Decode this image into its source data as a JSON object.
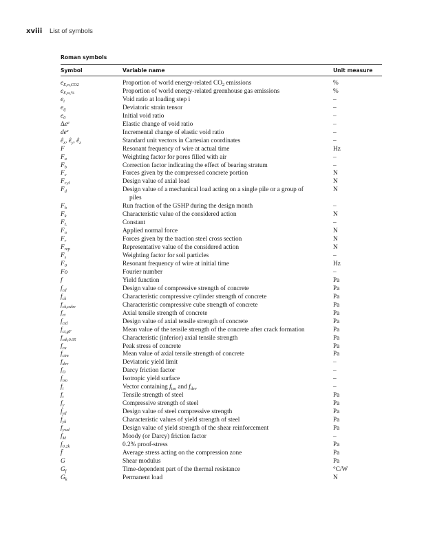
{
  "page_header": {
    "page_number": "xviii",
    "title": "List of symbols"
  },
  "section_title": "Roman symbols",
  "columns": {
    "symbol": "Symbol",
    "name": "Variable name",
    "unit": "Unit measure"
  },
  "rows": [
    {
      "sym": [
        {
          "t": "e"
        },
        {
          "sub": "E,w,CO2"
        }
      ],
      "name": [
        "Proportion of world energy-related CO",
        {
          "sub": "2"
        },
        " emissions"
      ],
      "unit": "%"
    },
    {
      "sym": [
        {
          "t": "e"
        },
        {
          "sub": "E,w,%"
        }
      ],
      "name": "Proportion of world energy-related greenhouse gas emissions",
      "unit": "%"
    },
    {
      "sym": [
        {
          "t": "e"
        },
        {
          "sub": "i"
        }
      ],
      "name": "Void ratio at loading step i",
      "unit": "–"
    },
    {
      "sym": [
        {
          "t": "e"
        },
        {
          "sub": "ij"
        }
      ],
      "name": "Deviatoric strain tensor",
      "unit": "–"
    },
    {
      "sym": [
        {
          "t": "e"
        },
        {
          "sub": "0"
        }
      ],
      "name": "Initial void ratio",
      "unit": "–"
    },
    {
      "sym": [
        {
          "up": "Δ"
        },
        {
          "t": "e"
        },
        {
          "sup": "e"
        }
      ],
      "name": "Elastic change of void ratio",
      "unit": "–"
    },
    {
      "sym": [
        {
          "t": "de"
        },
        {
          "sup": "e"
        }
      ],
      "name": "Incremental change of elastic void ratio",
      "unit": "–"
    },
    {
      "sym": [
        {
          "t": "ê"
        },
        {
          "sub": "x"
        },
        {
          "t": ", ê"
        },
        {
          "sub": "y"
        },
        {
          "t": ", ê"
        },
        {
          "sub": "z"
        }
      ],
      "name": "Standard unit vectors in Cartesian coordinates",
      "unit": "–"
    },
    {
      "sym": [
        {
          "t": "F"
        }
      ],
      "name": "Resonant frequency of wire at actual time",
      "unit": "Hz"
    },
    {
      "sym": [
        {
          "t": "F"
        },
        {
          "sub": "a"
        }
      ],
      "name": "Weighting factor for pores filled with air",
      "unit": "–"
    },
    {
      "sym": [
        {
          "t": "F"
        },
        {
          "sub": "b"
        }
      ],
      "name": "Correction factor indicating the effect of bearing stratum",
      "unit": "–"
    },
    {
      "sym": [
        {
          "t": "F"
        },
        {
          "sub": "c"
        }
      ],
      "name": "Forces given by the compressed concrete portion",
      "unit": "N"
    },
    {
      "sym": [
        {
          "t": "F"
        },
        {
          "sub": "c,d"
        }
      ],
      "name": "Design value of axial load",
      "unit": "N"
    },
    {
      "sym": [
        {
          "t": "F"
        },
        {
          "sub": "d"
        }
      ],
      "name": "Design value of a mechanical load acting on a single pile or a group of",
      "name_cont": "piles",
      "unit": "N"
    },
    {
      "sym": [
        {
          "t": "F"
        },
        {
          "sub": "h"
        }
      ],
      "name": "Run fraction of the GSHP during the design month",
      "unit": "–"
    },
    {
      "sym": [
        {
          "t": "F"
        },
        {
          "sub": "k"
        }
      ],
      "name": "Characteristic value of the considered action",
      "unit": "N"
    },
    {
      "sym": [
        {
          "t": "F"
        },
        {
          "sub": "L"
        }
      ],
      "name": "Constant",
      "unit": "–"
    },
    {
      "sym": [
        {
          "t": "F"
        },
        {
          "sub": "n"
        }
      ],
      "name": "Applied normal force",
      "unit": "N"
    },
    {
      "sym": [
        {
          "t": "F"
        },
        {
          "sub": "r"
        }
      ],
      "name": "Forces given by the traction steel cross section",
      "unit": "N"
    },
    {
      "sym": [
        {
          "t": "F"
        },
        {
          "sub": "rep"
        }
      ],
      "name": "Representative value of the considered action",
      "unit": "N"
    },
    {
      "sym": [
        {
          "t": "F"
        },
        {
          "sub": "s"
        }
      ],
      "name": "Weighting factor for soil particles",
      "unit": "–"
    },
    {
      "sym": [
        {
          "t": "F"
        },
        {
          "sub": "0"
        }
      ],
      "name": "Resonant frequency of wire at initial time",
      "unit": "Hz"
    },
    {
      "sym": [
        {
          "t": "Fo"
        }
      ],
      "name": "Fourier number",
      "unit": "–"
    },
    {
      "sym": [
        {
          "t": "f"
        }
      ],
      "name": "Yield function",
      "unit": "Pa"
    },
    {
      "sym": [
        {
          "t": "f"
        },
        {
          "sub": "cd"
        }
      ],
      "name": "Design value of compressive strength of concrete",
      "unit": "Pa"
    },
    {
      "sym": [
        {
          "t": "f"
        },
        {
          "sub": "ck"
        }
      ],
      "name": "Characteristic compressive cylinder strength of concrete",
      "unit": "Pa"
    },
    {
      "sym": [
        {
          "t": "f"
        },
        {
          "sub": "ck,cube"
        }
      ],
      "name": "Characteristic compressive cube strength of concrete",
      "unit": "Pa"
    },
    {
      "sym": [
        {
          "t": "f"
        },
        {
          "sub": "ct"
        }
      ],
      "name": "Axial tensile strength of concrete",
      "unit": "Pa"
    },
    {
      "sym": [
        {
          "t": "f"
        },
        {
          "sub": "ctd"
        }
      ],
      "name": "Design value of axial tensile strength of concrete",
      "unit": "Pa"
    },
    {
      "sym": [
        {
          "t": "f"
        },
        {
          "sub": "ct,gF"
        }
      ],
      "name": "Mean value of the tensile strength of the concrete after crack formation",
      "unit": "Pa"
    },
    {
      "sym": [
        {
          "t": "f"
        },
        {
          "sub": "ctk,0.05"
        }
      ],
      "name": "Characteristic (inferior) axial tensile strength",
      "unit": "Pa"
    },
    {
      "sym": [
        {
          "t": "f"
        },
        {
          "sub": "cu"
        }
      ],
      "name": "Peak stress of concrete",
      "unit": "Pa"
    },
    {
      "sym": [
        {
          "t": "f"
        },
        {
          "sub": "ctm"
        }
      ],
      "name": "Mean value of axial tensile strength of concrete",
      "unit": "Pa"
    },
    {
      "sym": [
        {
          "t": "f"
        },
        {
          "sub": "dev"
        }
      ],
      "name": "Deviatoric yield limit",
      "unit": "–"
    },
    {
      "sym": [
        {
          "t": "f"
        },
        {
          "sub": "D"
        }
      ],
      "name": "Darcy friction factor",
      "unit": "–"
    },
    {
      "sym": [
        {
          "t": "f"
        },
        {
          "sub": "iso"
        }
      ],
      "name": "Isotropic yield surface",
      "unit": "–"
    },
    {
      "sym": [
        {
          "t": "f"
        },
        {
          "sub": "i"
        }
      ],
      "name": [
        "Vector containing ",
        {
          "i": "f"
        },
        {
          "sub": "iso"
        },
        " and ",
        {
          "i": "f"
        },
        {
          "sub": "dev"
        }
      ],
      "unit": "–"
    },
    {
      "sym": [
        {
          "t": "f"
        },
        {
          "sub": "t"
        }
      ],
      "name": "Tensile strength of steel",
      "unit": "Pa"
    },
    {
      "sym": [
        {
          "t": "f"
        },
        {
          "sub": "y"
        }
      ],
      "name": "Compressive strength of steel",
      "unit": "Pa"
    },
    {
      "sym": [
        {
          "t": "f"
        },
        {
          "sub": "yd"
        }
      ],
      "name": "Design value of steel compressive strength",
      "unit": "Pa"
    },
    {
      "sym": [
        {
          "t": "f"
        },
        {
          "sub": "yk"
        }
      ],
      "name": "Characteristic values of yield strength of steel",
      "unit": "Pa"
    },
    {
      "sym": [
        {
          "t": "f"
        },
        {
          "sub": "ywd"
        }
      ],
      "name": "Design value of yield strength of the shear reinforcement",
      "unit": "Pa"
    },
    {
      "sym": [
        {
          "t": "f"
        },
        {
          "sub": "M"
        }
      ],
      "name": "Moody (or Darcy) friction factor",
      "unit": "–"
    },
    {
      "sym": [
        {
          "t": "f"
        },
        {
          "sub": "0.2k"
        }
      ],
      "name": "0.2% proof-stress",
      "unit": "Pa"
    },
    {
      "sym": [
        {
          "t": "f̄"
        }
      ],
      "name": "Average stress acting on the compression zone",
      "unit": "Pa"
    },
    {
      "sym": [
        {
          "t": "G"
        }
      ],
      "name": "Shear modulus",
      "unit": "Pa"
    },
    {
      "sym": [
        {
          "t": "G"
        },
        {
          "sub": "f"
        }
      ],
      "name": "Time-dependent part of the thermal resistance",
      "unit": "°C/W"
    },
    {
      "sym": [
        {
          "t": "G"
        },
        {
          "sub": "k"
        }
      ],
      "name": "Permanent load",
      "unit": "N"
    }
  ]
}
